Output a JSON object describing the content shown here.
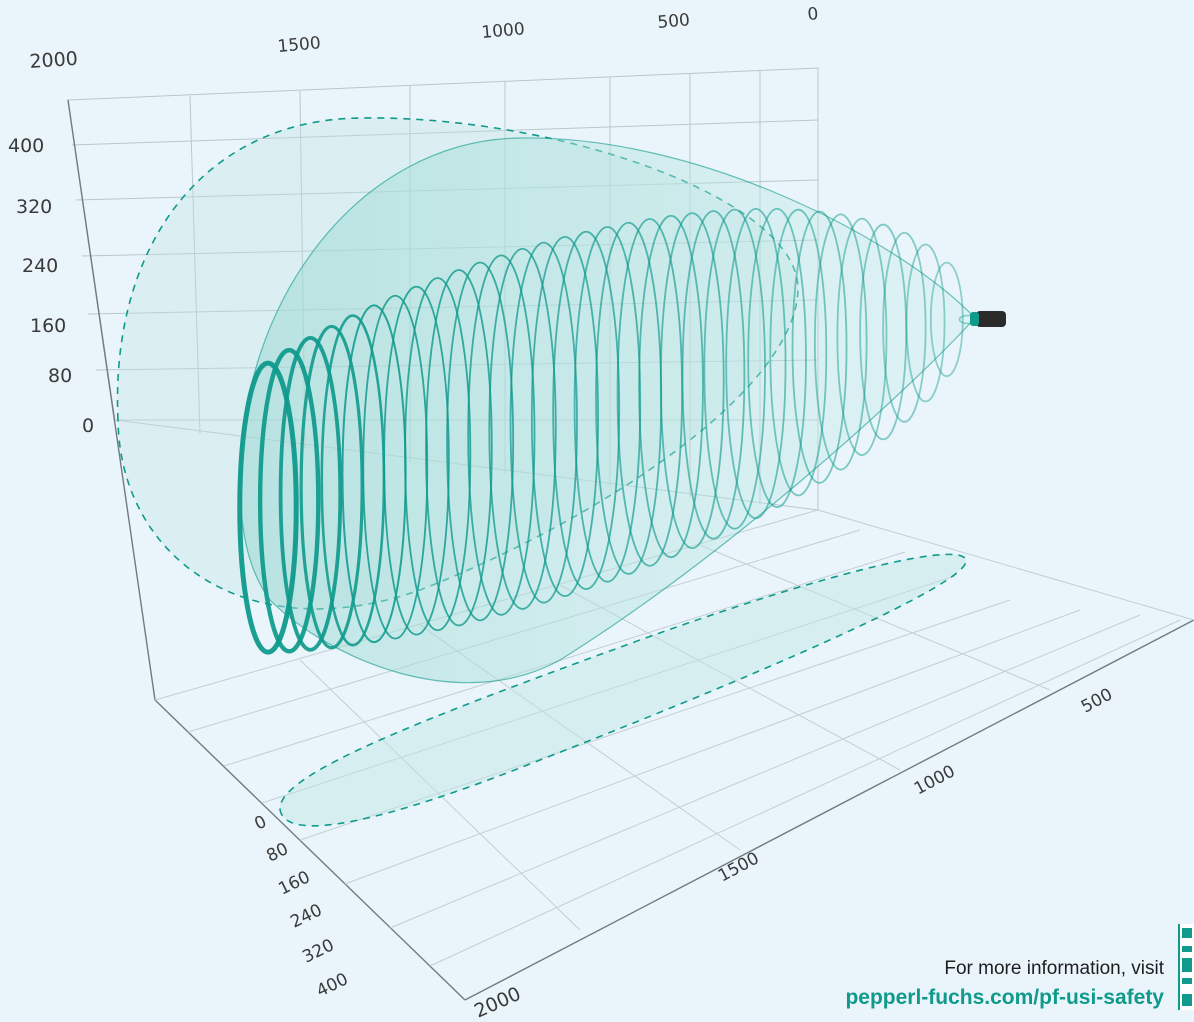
{
  "diagram": {
    "back_top_ticks": [
      "2000",
      "1500",
      "1000",
      "500",
      "0"
    ],
    "vertical_ticks": [
      "400",
      "320",
      "240",
      "160",
      "80",
      "0"
    ],
    "floor_right_ticks": [
      "2000",
      "1500",
      "1000",
      "500"
    ],
    "floor_left_ticks": [
      "0",
      "80",
      "160",
      "240",
      "320",
      "400"
    ],
    "colors": {
      "accent": "#0f9a8c",
      "background": "#eaf5fb",
      "grid": "#b9c6cc"
    }
  },
  "footer": {
    "line1": "For more information, visit",
    "link": "pepperl-fuchs.com/pf-usi-safety"
  }
}
